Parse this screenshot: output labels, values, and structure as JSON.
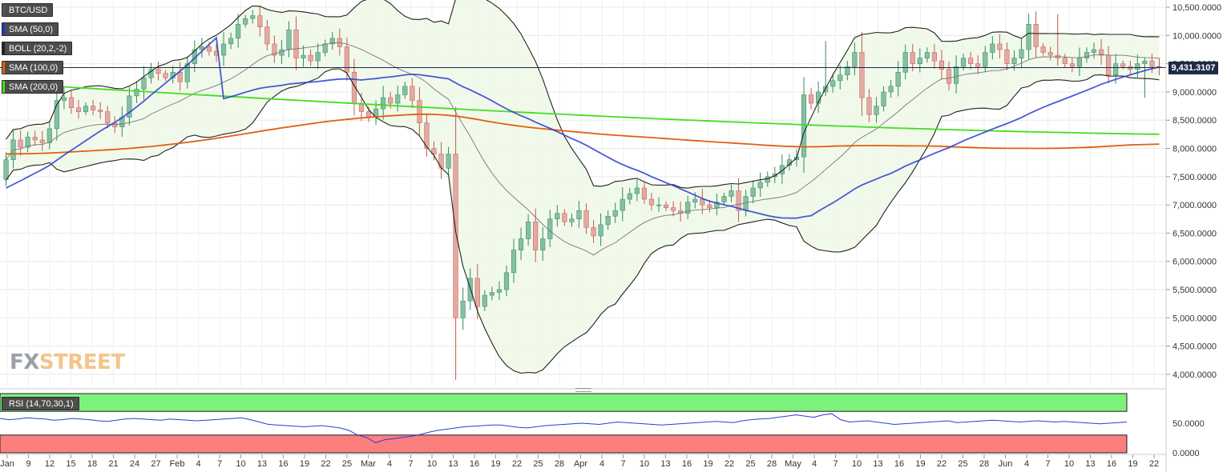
{
  "instrument": "BTC/USD",
  "legend": [
    {
      "label": "BTC/USD",
      "color": "#555555"
    },
    {
      "label": "SMA (50,0)",
      "color": "#2233cc"
    },
    {
      "label": "BOLL (20,2,-2)",
      "color": "#222222"
    },
    {
      "label": "SMA (100,0)",
      "color": "#e06010"
    },
    {
      "label": "SMA (200,0)",
      "color": "#44dd22"
    }
  ],
  "current_price_label": "9,431.3107",
  "watermark": {
    "fx": "FX",
    "street": "STREET"
  },
  "rsi": {
    "label": "RSI (14,70,30,1)",
    "overbought": 70,
    "oversold": 30,
    "y_ticks": [
      "50.0000",
      "0.0000"
    ],
    "values": [
      58,
      56,
      57,
      59,
      58,
      57,
      55,
      56,
      58,
      57,
      56,
      54,
      53,
      55,
      57,
      58,
      57,
      56,
      55,
      57,
      56,
      55,
      54,
      55,
      56,
      57,
      58,
      59,
      56,
      52,
      48,
      47,
      46,
      45,
      44,
      45,
      46,
      44,
      42,
      38,
      30,
      26,
      17,
      22,
      24,
      26,
      28,
      31,
      35,
      38,
      40,
      42,
      44,
      45,
      46,
      47,
      47,
      45,
      43,
      42,
      44,
      46,
      47,
      48,
      49,
      50,
      49,
      48,
      50,
      52,
      51,
      50,
      49,
      48,
      47,
      48,
      49,
      50,
      51,
      52,
      53,
      52,
      51,
      54,
      56,
      57,
      58,
      60,
      62,
      64,
      62,
      60,
      64,
      66,
      56,
      52,
      53,
      54,
      52,
      50,
      48,
      49,
      50,
      51,
      52,
      53,
      54,
      51,
      52,
      53,
      54,
      55,
      54,
      53,
      52,
      53,
      54,
      53,
      52,
      53,
      52,
      51,
      50,
      49,
      50,
      51,
      52
    ]
  },
  "chart_data": {
    "type": "candlestick",
    "ylim": [
      3800,
      10600
    ],
    "y_ticks": [
      "10,500.0000",
      "10,000.0000",
      "9,500.0000",
      "9,000.0000",
      "8,500.0000",
      "8,000.0000",
      "7,500.0000",
      "7,000.0000",
      "6,500.0000",
      "6,000.0000",
      "5,500.0000",
      "5,000.0000",
      "4,500.0000",
      "4,000.0000"
    ],
    "x_ticks": [
      "Jan",
      "9",
      "12",
      "15",
      "18",
      "21",
      "24",
      "27",
      "Feb",
      "4",
      "7",
      "10",
      "13",
      "16",
      "19",
      "22",
      "25",
      "Mar",
      "4",
      "7",
      "10",
      "13",
      "16",
      "19",
      "22",
      "25",
      "28",
      "Apr",
      "4",
      "7",
      "10",
      "13",
      "16",
      "19",
      "22",
      "25",
      "28",
      "May",
      "4",
      "7",
      "10",
      "13",
      "16",
      "19",
      "22",
      "25",
      "28",
      "Jun",
      "4",
      "7",
      "10",
      "13",
      "16",
      "19",
      "22"
    ],
    "close": [
      7800,
      8150,
      8020,
      8200,
      8150,
      8100,
      8350,
      8850,
      8900,
      8720,
      8650,
      8750,
      8680,
      8650,
      8450,
      8380,
      8550,
      8930,
      9050,
      9250,
      9400,
      9330,
      9250,
      9350,
      9180,
      9500,
      9750,
      9800,
      9720,
      9650,
      9850,
      9950,
      10200,
      10300,
      10350,
      10150,
      9850,
      9650,
      9750,
      10100,
      9600,
      9650,
      9550,
      9700,
      9850,
      9950,
      9800,
      9350,
      8800,
      8650,
      8550,
      8700,
      8900,
      8800,
      8950,
      9100,
      8850,
      8450,
      8000,
      7900,
      7650,
      7900,
      5000,
      5300,
      5700,
      5200,
      5400,
      5450,
      5500,
      5800,
      6200,
      6400,
      6700,
      6200,
      6400,
      6750,
      6850,
      6700,
      6750,
      6900,
      6600,
      6450,
      6650,
      6800,
      6900,
      7100,
      7200,
      7300,
      7100,
      7000,
      7000,
      6950,
      6900,
      6850,
      7050,
      7100,
      7000,
      6950,
      7050,
      7150,
      7250,
      6900,
      7150,
      7300,
      7400,
      7500,
      7550,
      7700,
      7800,
      7850,
      8950,
      8800,
      9000,
      9100,
      9200,
      9300,
      9450,
      9700,
      8900,
      8600,
      8750,
      9000,
      9100,
      9350,
      9700,
      9500,
      9600,
      9700,
      9550,
      9400,
      9150,
      9450,
      9600,
      9500,
      9450,
      9700,
      9850,
      9750,
      9500,
      9600,
      9750,
      10200,
      9800,
      9700,
      9650,
      9600,
      9500,
      9450,
      9600,
      9700,
      9750,
      9650,
      9300,
      9500,
      9450,
      9400,
      9500,
      9550,
      9450,
      9431
    ]
  }
}
